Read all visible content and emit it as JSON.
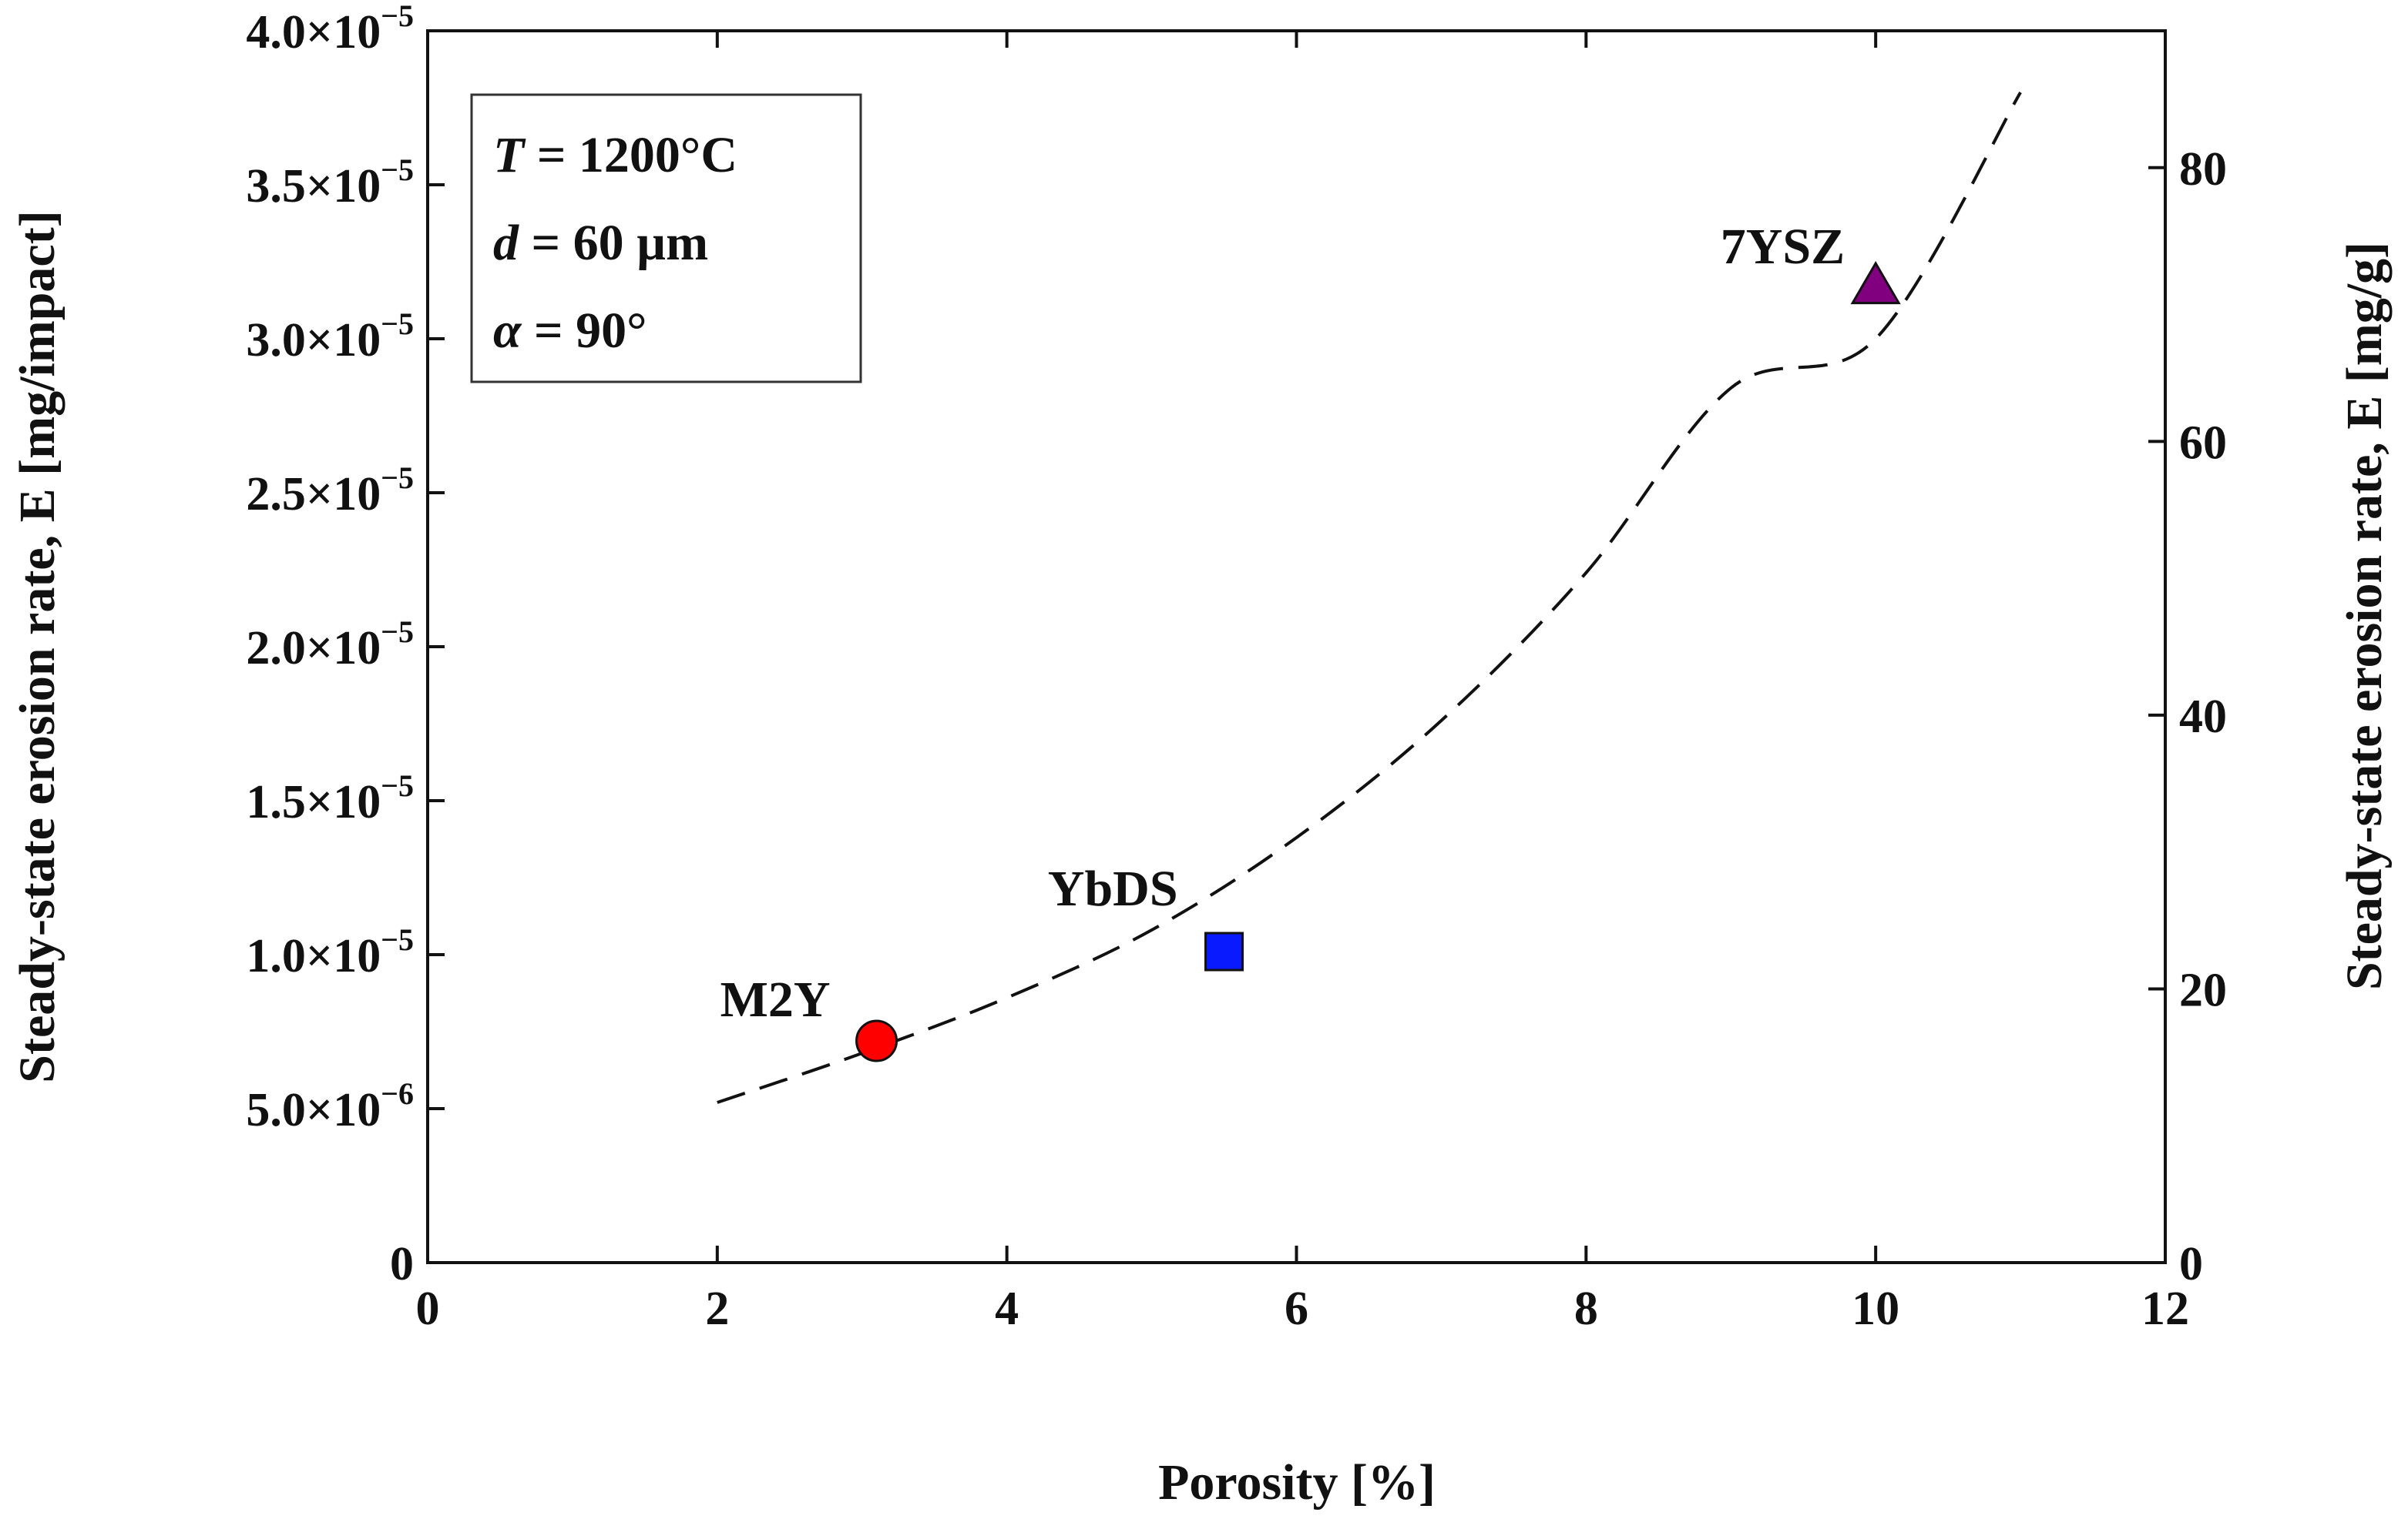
{
  "chart_data": {
    "type": "scatter",
    "title": "",
    "xlabel": "Porosity [%]",
    "ylabel_left": "Steady-state erosion rate, E [mg/impact]",
    "ylabel_right": "Steady-state erosion rate, E [mg/g]",
    "xlim": [
      0,
      12
    ],
    "ylim": [
      0,
      4e-05
    ],
    "ylim_right": [
      0,
      90
    ],
    "x_ticks": [
      "0",
      "2",
      "4",
      "6",
      "8",
      "10",
      "12"
    ],
    "y_ticks": [
      {
        "value": 0,
        "mantissa": "0",
        "exp": ""
      },
      {
        "value": 5e-06,
        "mantissa": "5.0×10",
        "exp": "−6"
      },
      {
        "value": 1e-05,
        "mantissa": "1.0×10",
        "exp": "−5"
      },
      {
        "value": 1.5e-05,
        "mantissa": "1.5×10",
        "exp": "−5"
      },
      {
        "value": 2e-05,
        "mantissa": "2.0×10",
        "exp": "−5"
      },
      {
        "value": 2.5e-05,
        "mantissa": "2.5×10",
        "exp": "−5"
      },
      {
        "value": 3e-05,
        "mantissa": "3.0×10",
        "exp": "−5"
      },
      {
        "value": 3.5e-05,
        "mantissa": "3.5×10",
        "exp": "−5"
      },
      {
        "value": 4e-05,
        "mantissa": "4.0×10",
        "exp": "−5"
      }
    ],
    "y_right_ticks": [
      "0",
      "20",
      "40",
      "60",
      "80"
    ],
    "conditions": {
      "T": {
        "symbol": "T",
        "rest": " = 1200°C"
      },
      "d": {
        "symbol": "d",
        "rest": " = 60 µm"
      },
      "alpha": {
        "symbol": "α",
        "rest": " = 90°"
      }
    },
    "points": [
      {
        "name": "M2Y",
        "x": 3.1,
        "y": 7.2e-06,
        "marker": "circle",
        "color": "#ff0000"
      },
      {
        "name": "YbDS",
        "x": 5.5,
        "y": 1.01e-05,
        "marker": "square",
        "color": "#0a1aff"
      },
      {
        "name": "7YSZ",
        "x": 10.0,
        "y": 3.17e-05,
        "marker": "triangle",
        "color": "#800080"
      }
    ],
    "fit": {
      "style": "dashed",
      "color": "#000000",
      "x": [
        2.0,
        3.0,
        4.0,
        5.0,
        6.0,
        7.0,
        8.0,
        9.0,
        10.0,
        11.0
      ],
      "y": [
        5.2e-06,
        6.8e-06,
        8.6e-06,
        1.08e-05,
        1.38e-05,
        1.76e-05,
        2.24e-05,
        2.84e-05,
        3e-05,
        3.8e-05
      ]
    }
  }
}
